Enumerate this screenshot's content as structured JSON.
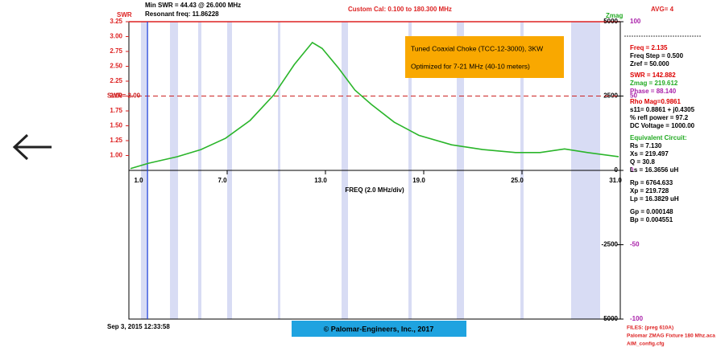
{
  "chart_data": {
    "type": "line",
    "x_label": "FREQ (2.0 MHz/div)",
    "y_label": "SWR",
    "y2_label": "Zmag",
    "header": [
      "Min SWR = 44.43 @ 26.000 MHz",
      "Resonant freq: 11.86228"
    ],
    "cal": "Custom Cal: 0.100 to 180.300 MHz",
    "avg": "AVG= 4",
    "annotation": [
      "Tuned Coaxial Choke (TCC-12-3000), 3KW",
      "Optimized for 7-21 MHz (40-10 meters)"
    ],
    "swr_line": {
      "value": 2,
      "label": "SWR= 2.00",
      "color": "#cc2222"
    },
    "cursor": 2.135,
    "xlim": [
      1,
      31
    ],
    "xticks": [
      {
        "value": 1,
        "label": "1.0"
      },
      {
        "value": 7,
        "label": "7.0"
      },
      {
        "value": 13,
        "label": "13.0"
      },
      {
        "value": 19,
        "label": "19.0"
      },
      {
        "value": 25,
        "label": "25.0"
      },
      {
        "value": 31,
        "label": "31.0"
      }
    ],
    "ylim": [
      -1.75,
      3.25
    ],
    "yticks": [
      3.25,
      {
        "value": 3,
        "label": "3.00"
      },
      2.75,
      {
        "value": 2.5,
        "label": "2.50"
      },
      2.25,
      {
        "value": 2,
        "label": "2.00"
      },
      1.75,
      {
        "value": 1.5,
        "label": "1.50"
      },
      1.25,
      {
        "value": 1,
        "label": "1.00"
      }
    ],
    "y2lim": [
      -5000,
      5000
    ],
    "y2ticks": [
      5000,
      2500,
      0,
      -2500,
      -5000
    ],
    "y3lim": [
      -100,
      100
    ],
    "y3ticks": [
      100,
      50,
      0,
      -50,
      -100
    ],
    "x": [
      1.1,
      2.2,
      3.95,
      5.4,
      6.9,
      8.4,
      9.85,
      11.1,
      12.2,
      12.8,
      13.8,
      14.8,
      15.8,
      17.2,
      18.7,
      20.7,
      22.6,
      24.6,
      26.1,
      27.6,
      29.0,
      30.9
    ],
    "series": [
      {
        "name": "SWR",
        "color": "#2ab52a",
        "values": [
          0.78,
          0.87,
          0.98,
          1.1,
          1.29,
          1.59,
          2.02,
          2.53,
          2.9,
          2.8,
          2.47,
          2.1,
          1.86,
          1.56,
          1.34,
          1.18,
          1.1,
          1.05,
          1.05,
          1.11,
          1.05,
          0.98
        ]
      }
    ],
    "timestamp": "Sep 3, 2015 12:33:58",
    "copyright": "© Palomar-Engineers, Inc., 2017"
  },
  "readout": [
    {
      "text": "Freq = 2.135",
      "color": "#dd0000"
    },
    {
      "text": "Freq Step = 0.500",
      "color": "#000000"
    },
    {
      "text": "Zref = 50.000",
      "color": "#000000"
    },
    {
      "text": "SWR = 142.882",
      "color": "#dd0000"
    },
    {
      "text": "Zmag = 219.612",
      "color": "#22aa22"
    },
    {
      "text": "Phase = 88.140",
      "color": "#aa22aa"
    },
    {
      "text": "Rho Mag=0.9861",
      "color": "#dd0000"
    },
    {
      "text": "s11= 0.8861 + j0.4305",
      "color": "#000000"
    },
    {
      "text": "% refl power = 97.2",
      "color": "#000000"
    },
    {
      "text": "DC Voltage = 1000.00",
      "color": "#000000"
    },
    {
      "text": "Equivalent Circuit:",
      "color": "#22aa22"
    },
    {
      "text": "Rs = 7.130",
      "color": "#000000"
    },
    {
      "text": "Xs = 219.497",
      "color": "#000000"
    },
    {
      "text": "Q = 30.8",
      "color": "#000000"
    },
    {
      "text": "Ls = 16.3656 uH",
      "color": "#000000"
    },
    {
      "text": "Rp = 6764.633",
      "color": "#000000"
    },
    {
      "text": "Xp = 219.728",
      "color": "#000000"
    },
    {
      "text": "Lp = 16.3829 uH",
      "color": "#000000"
    },
    {
      "text": "Gp = 0.000148",
      "color": "#000000"
    },
    {
      "text": "Bp = 0.004551",
      "color": "#000000"
    }
  ],
  "files": [
    "FILES: (preg 610A)",
    "Palomar ZMAG Fixture 180 Mhz.aca",
    "AIM_config.cfg"
  ]
}
